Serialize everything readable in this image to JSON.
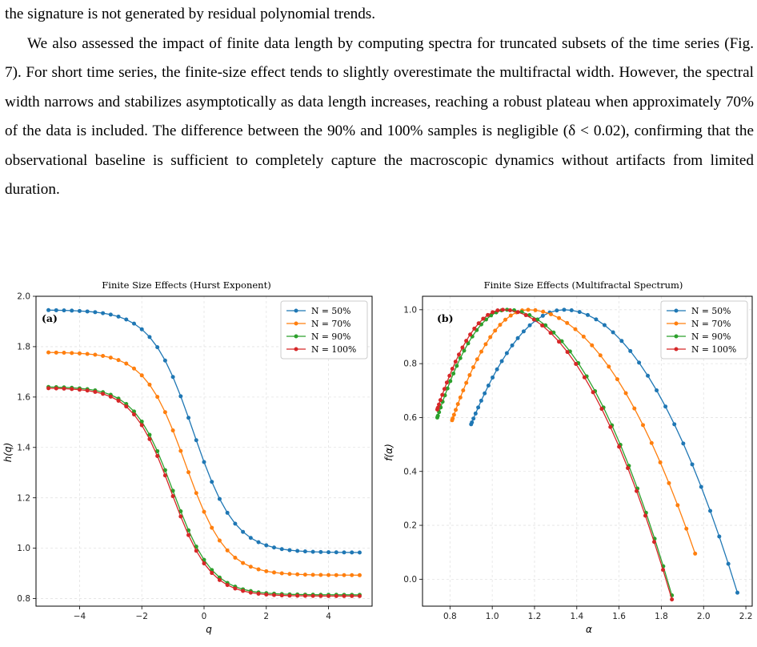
{
  "text": {
    "line1": "the signature is not generated by residual polynomial trends.",
    "para": "We also assessed the impact of finite data length by computing spectra for truncated subsets of the time series (Fig. 7). For short time series, the finite-size effect tends to slightly overestimate the multifractal width. However, the spectral width narrows and stabilizes asymptotically as data length increases, reaching a robust plateau when approximately 70% of the data is included. The difference between the 90% and 100% samples is negligible (δ < 0.02), confirming that the observational baseline is sufficient to completely capture the macroscopic dynamics without artifacts from limited duration."
  },
  "colors": {
    "N50": "#1f77b4",
    "N70": "#ff7f0e",
    "N90": "#2ca02c",
    "N100": "#d62728"
  },
  "chart_data": [
    {
      "type": "line",
      "title": "Finite Size Effects (Hurst Exponent)",
      "panel_label": "(a)",
      "xlabel": "q",
      "ylabel": "h(q)",
      "xlim": [
        -5.4,
        5.4
      ],
      "ylim": [
        0.77,
        2.0
      ],
      "xticks": [
        -4,
        -2,
        0,
        2,
        4
      ],
      "xtick_labels": [
        "−4",
        "−2",
        "0",
        "2",
        "4"
      ],
      "yticks": [
        0.8,
        1.0,
        1.2,
        1.4,
        1.6,
        1.8,
        2.0
      ],
      "ytick_labels": [
        "0.8",
        "1.0",
        "1.2",
        "1.4",
        "1.6",
        "1.8",
        "2.0"
      ],
      "grid": true,
      "legend_position": "top-right",
      "q_range": [
        -5,
        5
      ],
      "points_per_series": 41,
      "series": [
        {
          "name": "N = 50%",
          "key": "N50",
          "h_at_q_minus5": 1.945,
          "h_at_q_plus5": 0.983,
          "center": -0.35,
          "width": 1.35
        },
        {
          "name": "N = 70%",
          "key": "N70",
          "h_at_q_minus5": 1.777,
          "h_at_q_plus5": 0.893,
          "center": -0.6,
          "width": 1.3
        },
        {
          "name": "N = 90%",
          "key": "N90",
          "h_at_q_minus5": 1.64,
          "h_at_q_plus5": 0.815,
          "center": -1.0,
          "width": 1.25
        },
        {
          "name": "N = 100%",
          "key": "N100",
          "h_at_q_minus5": 1.635,
          "h_at_q_plus5": 0.81,
          "center": -1.05,
          "width": 1.25
        }
      ]
    },
    {
      "type": "line",
      "title": "Finite Size Effects (Multifractal Spectrum)",
      "panel_label": "(b)",
      "xlabel": "α",
      "ylabel": "f(α)",
      "xlim": [
        0.67,
        2.23
      ],
      "ylim": [
        -0.1,
        1.05
      ],
      "xticks": [
        0.8,
        1.0,
        1.2,
        1.4,
        1.6,
        1.8,
        2.0,
        2.2
      ],
      "xtick_labels": [
        "0.8",
        "1.0",
        "1.2",
        "1.4",
        "1.6",
        "1.8",
        "2.0",
        "2.2"
      ],
      "yticks": [
        0.0,
        0.2,
        0.4,
        0.6,
        0.8,
        1.0
      ],
      "ytick_labels": [
        "0.0",
        "0.2",
        "0.4",
        "0.6",
        "0.8",
        "1.0"
      ],
      "grid": true,
      "legend_position": "top-right",
      "series": [
        {
          "name": "N = 50%",
          "key": "N50",
          "alpha_min": 0.9,
          "alpha_peak": 1.34,
          "alpha_max": 2.16,
          "f_left": 0.575,
          "f_right": -0.05
        },
        {
          "name": "N = 70%",
          "key": "N70",
          "alpha_min": 0.81,
          "alpha_peak": 1.17,
          "alpha_max": 1.96,
          "f_left": 0.59,
          "f_right": 0.095
        },
        {
          "name": "N = 90%",
          "key": "N90",
          "alpha_min": 0.74,
          "alpha_peak": 1.07,
          "alpha_max": 1.85,
          "f_left": 0.6,
          "f_right": -0.06
        },
        {
          "name": "N = 100%",
          "key": "N100",
          "alpha_min": 0.74,
          "alpha_peak": 1.05,
          "alpha_max": 1.85,
          "f_left": 0.63,
          "f_right": -0.075
        }
      ]
    }
  ]
}
